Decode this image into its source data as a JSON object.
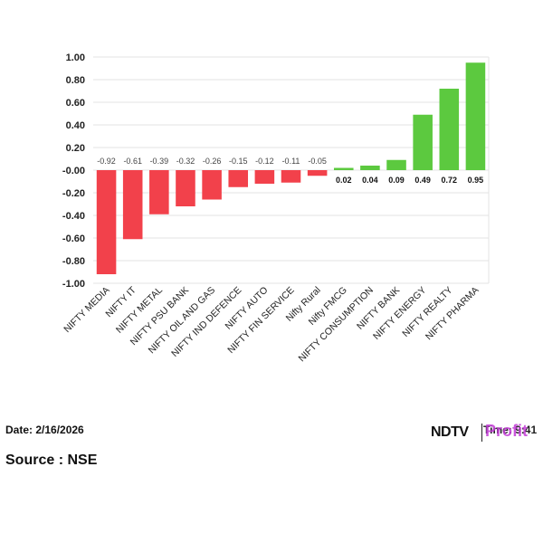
{
  "chart_data": {
    "type": "bar",
    "categories": [
      "NIFTY MEDIA",
      "NIFTY IT",
      "NIFTY METAL",
      "NIFTY PSU BANK",
      "NIFTY OIL AND GAS",
      "NIFTY IND DEFENCE",
      "NIFTY AUTO",
      "NIFTY FIN SERVICE",
      "Nifty Rural",
      "Nifty FMCG",
      "NIFTY CONSUMPTION",
      "NIFTY BANK",
      "NIFTY ENERGY",
      "NIFTY REALTY",
      "NIFTY PHARMA"
    ],
    "values": [
      -0.92,
      -0.61,
      -0.39,
      -0.32,
      -0.26,
      -0.15,
      -0.12,
      -0.11,
      -0.05,
      0.02,
      0.04,
      0.09,
      0.49,
      0.72,
      0.95
    ],
    "labels": [
      "-0.92",
      "-0.61",
      "-0.39",
      "-0.32",
      "-0.26",
      "-0.15",
      "-0.12",
      "-0.11",
      "-0.05",
      "0.02",
      "0.04",
      "0.09",
      "0.49",
      "0.72",
      "0.95"
    ],
    "yticks": [
      "1.00",
      "0.80",
      "0.60",
      "0.40",
      "0.20",
      "-0.00",
      "-0.20",
      "-0.40",
      "-0.60",
      "-0.80",
      "-1.00"
    ],
    "ylim": [
      -1.0,
      1.0
    ],
    "title": "",
    "xlabel": "",
    "ylabel": "",
    "grid": true,
    "colors": {
      "positive": "#5cc93f",
      "negative": "#f2414b"
    }
  },
  "footer": {
    "date": "Date: 2/16/2026",
    "source": "Source : NSE",
    "brand_ndtv": "NDTV",
    "brand_profit": "Profit",
    "time_text": "Time: 9:41"
  }
}
